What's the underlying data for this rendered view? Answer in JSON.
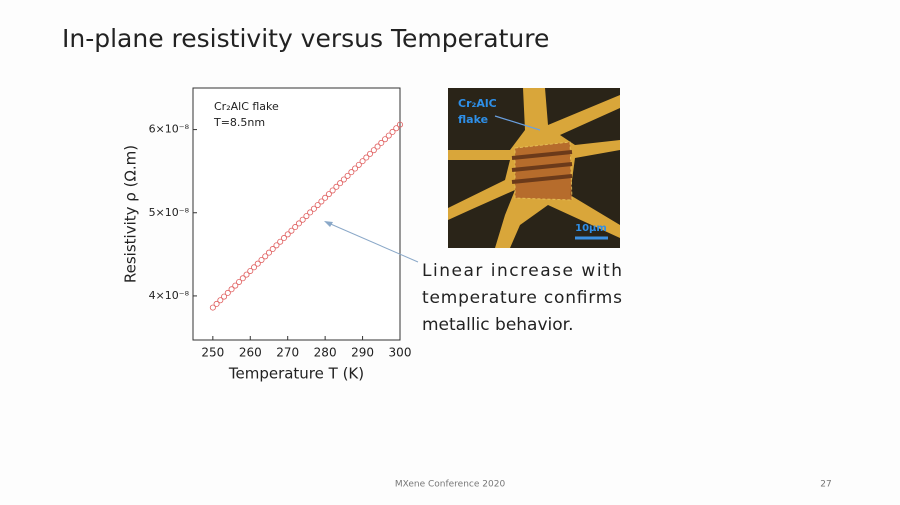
{
  "slide": {
    "title": "In-plane resistivity versus Temperature",
    "annotation": [
      "Linear increase with",
      "temperature confirms",
      "metallic behavior."
    ],
    "image": {
      "label": [
        "Cr₂AlC",
        "flake"
      ],
      "scale_bar": "10μm"
    },
    "footer": "MXene Conference 2020",
    "page_number": "27"
  },
  "chart_data": {
    "type": "scatter",
    "x_label": "Temperature T (K)",
    "y_label": "Resistivity ρ (Ω.m)",
    "legend_text": [
      "Cr₂AlC flake",
      "T=8.5nm"
    ],
    "xlim": [
      244.7,
      300
    ],
    "xticks": [
      250,
      260,
      270,
      280,
      290,
      300
    ],
    "ylim": [
      3.47e-08,
      6.5e-08
    ],
    "yticks": [
      {
        "value": 4e-08,
        "label": "4×10⁻⁸"
      },
      {
        "value": 5e-08,
        "label": "5×10⁻⁸"
      },
      {
        "value": 6e-08,
        "label": "6×10⁻⁸"
      }
    ],
    "series": [
      {
        "color": "#e06060",
        "x": [
          250,
          251,
          252,
          253,
          254,
          255,
          256,
          257,
          258,
          259,
          260,
          261,
          262,
          263,
          264,
          265,
          266,
          267,
          268,
          269,
          270,
          271,
          272,
          273,
          274,
          275,
          276,
          277,
          278,
          279,
          280,
          281,
          282,
          283,
          284,
          285,
          286,
          287,
          288,
          289,
          290,
          291,
          292,
          293,
          294,
          295,
          296,
          297,
          298,
          299,
          300
        ],
        "values": [
          3.86e-08,
          3.904e-08,
          3.948e-08,
          3.992e-08,
          4.036e-08,
          4.08e-08,
          4.124e-08,
          4.168e-08,
          4.212e-08,
          4.256e-08,
          4.3e-08,
          4.344e-08,
          4.388e-08,
          4.432e-08,
          4.476e-08,
          4.52e-08,
          4.564e-08,
          4.608e-08,
          4.652e-08,
          4.696e-08,
          4.74e-08,
          4.784e-08,
          4.828e-08,
          4.872e-08,
          4.916e-08,
          4.96e-08,
          5.004e-08,
          5.048e-08,
          5.092e-08,
          5.136e-08,
          5.18e-08,
          5.224e-08,
          5.268e-08,
          5.312e-08,
          5.356e-08,
          5.4e-08,
          5.444e-08,
          5.488e-08,
          5.532e-08,
          5.576e-08,
          5.62e-08,
          5.664e-08,
          5.708e-08,
          5.752e-08,
          5.796e-08,
          5.84e-08,
          5.884e-08,
          5.928e-08,
          5.972e-08,
          6.016e-08,
          6.06e-08
        ]
      }
    ]
  }
}
